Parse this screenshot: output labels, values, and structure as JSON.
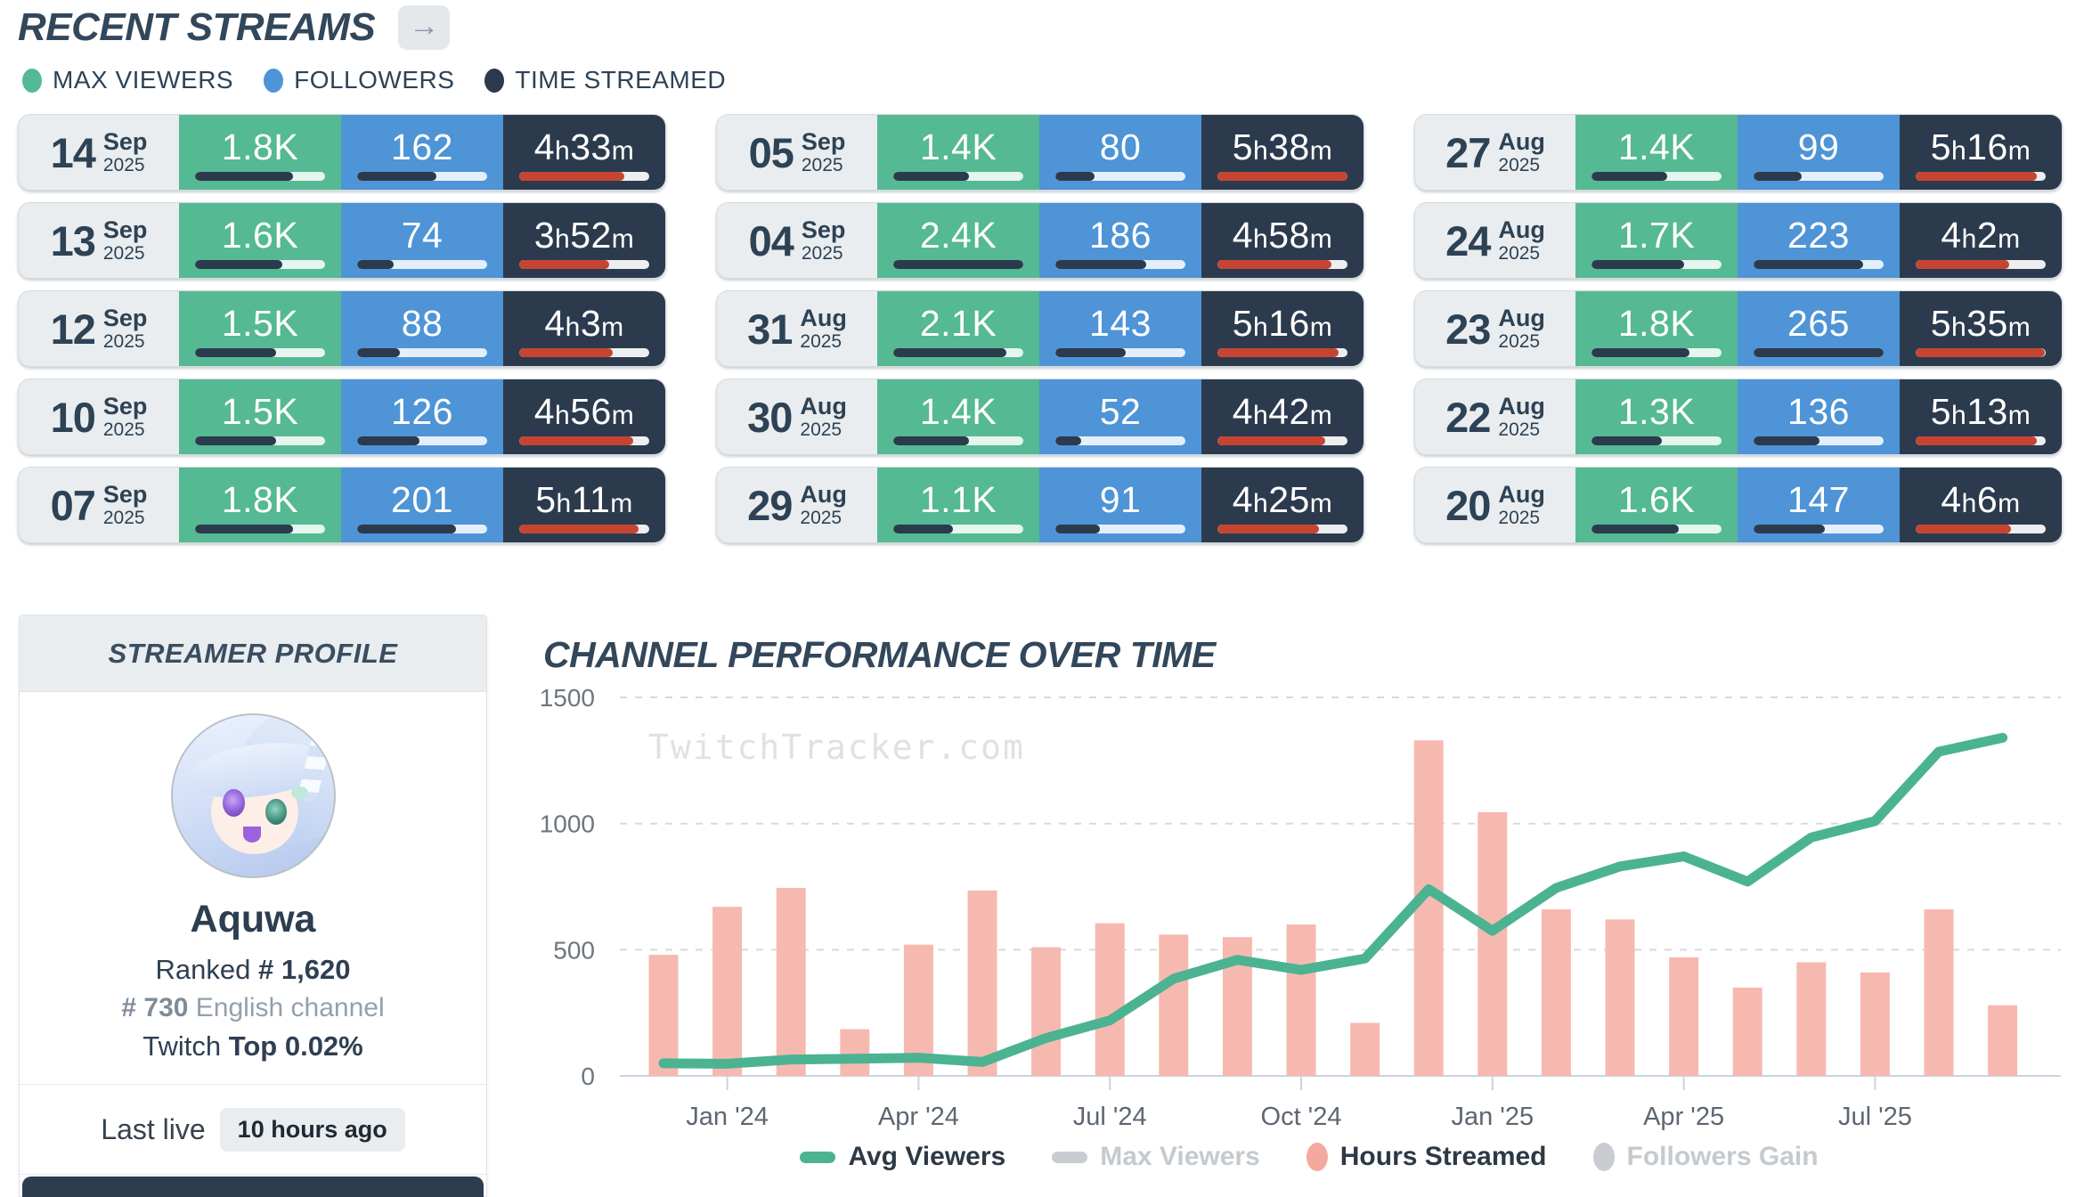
{
  "colors": {
    "accent_green": "#55b993",
    "accent_blue": "#4e94d6",
    "accent_navy": "#2c3a4d",
    "progress_red": "#c64532",
    "track_light": "rgba(255,255,255,0.85)",
    "track_on_dark": "#eceef0",
    "bar_pink": "#f6b9b0",
    "line_green": "#4bb392",
    "muted_gray": "#c9cdd1",
    "grid_gray": "#d9d9d9",
    "axis_line": "#c9d3e0"
  },
  "recent_streams": {
    "title": "RECENT STREAMS",
    "arrow_button": "→",
    "legend": [
      {
        "label": "MAX VIEWERS",
        "color": "#55b993"
      },
      {
        "label": "FOLLOWERS",
        "color": "#4e94d6"
      },
      {
        "label": "TIME STREAMED",
        "color": "#2c3a4d"
      }
    ],
    "columns": [
      [
        {
          "day": "14",
          "month": "Sep",
          "year": "2025",
          "max_viewers": "1.8K",
          "max_viewers_pct": 75,
          "followers": "162",
          "followers_pct": 61,
          "time_streamed": "4h33m",
          "time_streamed_pct": 81
        },
        {
          "day": "13",
          "month": "Sep",
          "year": "2025",
          "max_viewers": "1.6K",
          "max_viewers_pct": 67,
          "followers": "74",
          "followers_pct": 28,
          "time_streamed": "3h52m",
          "time_streamed_pct": 69
        },
        {
          "day": "12",
          "month": "Sep",
          "year": "2025",
          "max_viewers": "1.5K",
          "max_viewers_pct": 62,
          "followers": "88",
          "followers_pct": 33,
          "time_streamed": "4h3m",
          "time_streamed_pct": 72
        },
        {
          "day": "10",
          "month": "Sep",
          "year": "2025",
          "max_viewers": "1.5K",
          "max_viewers_pct": 62,
          "followers": "126",
          "followers_pct": 48,
          "time_streamed": "4h56m",
          "time_streamed_pct": 88
        },
        {
          "day": "07",
          "month": "Sep",
          "year": "2025",
          "max_viewers": "1.8K",
          "max_viewers_pct": 75,
          "followers": "201",
          "followers_pct": 76,
          "time_streamed": "5h11m",
          "time_streamed_pct": 92
        }
      ],
      [
        {
          "day": "05",
          "month": "Sep",
          "year": "2025",
          "max_viewers": "1.4K",
          "max_viewers_pct": 58,
          "followers": "80",
          "followers_pct": 30,
          "time_streamed": "5h38m",
          "time_streamed_pct": 100
        },
        {
          "day": "04",
          "month": "Sep",
          "year": "2025",
          "max_viewers": "2.4K",
          "max_viewers_pct": 100,
          "followers": "186",
          "followers_pct": 70,
          "time_streamed": "4h58m",
          "time_streamed_pct": 88
        },
        {
          "day": "31",
          "month": "Aug",
          "year": "2025",
          "max_viewers": "2.1K",
          "max_viewers_pct": 87,
          "followers": "143",
          "followers_pct": 54,
          "time_streamed": "5h16m",
          "time_streamed_pct": 93
        },
        {
          "day": "30",
          "month": "Aug",
          "year": "2025",
          "max_viewers": "1.4K",
          "max_viewers_pct": 58,
          "followers": "52",
          "followers_pct": 20,
          "time_streamed": "4h42m",
          "time_streamed_pct": 83
        },
        {
          "day": "29",
          "month": "Aug",
          "year": "2025",
          "max_viewers": "1.1K",
          "max_viewers_pct": 46,
          "followers": "91",
          "followers_pct": 34,
          "time_streamed": "4h25m",
          "time_streamed_pct": 78
        }
      ],
      [
        {
          "day": "27",
          "month": "Aug",
          "year": "2025",
          "max_viewers": "1.4K",
          "max_viewers_pct": 58,
          "followers": "99",
          "followers_pct": 37,
          "time_streamed": "5h16m",
          "time_streamed_pct": 93
        },
        {
          "day": "24",
          "month": "Aug",
          "year": "2025",
          "max_viewers": "1.7K",
          "max_viewers_pct": 71,
          "followers": "223",
          "followers_pct": 84,
          "time_streamed": "4h2m",
          "time_streamed_pct": 72
        },
        {
          "day": "23",
          "month": "Aug",
          "year": "2025",
          "max_viewers": "1.8K",
          "max_viewers_pct": 75,
          "followers": "265",
          "followers_pct": 100,
          "time_streamed": "5h35m",
          "time_streamed_pct": 99
        },
        {
          "day": "22",
          "month": "Aug",
          "year": "2025",
          "max_viewers": "1.3K",
          "max_viewers_pct": 54,
          "followers": "136",
          "followers_pct": 51,
          "time_streamed": "5h13m",
          "time_streamed_pct": 93
        },
        {
          "day": "20",
          "month": "Aug",
          "year": "2025",
          "max_viewers": "1.6K",
          "max_viewers_pct": 67,
          "followers": "147",
          "followers_pct": 55,
          "time_streamed": "4h6m",
          "time_streamed_pct": 73
        }
      ]
    ]
  },
  "profile": {
    "header": "STREAMER PROFILE",
    "name": "Aquwa",
    "ranked_label": "Ranked",
    "ranked_value": "# 1,620",
    "lang_rank": "# 730",
    "lang_text": "English channel",
    "twitch_label": "Twitch",
    "twitch_value": "Top 0.02%",
    "last_live_label": "Last live",
    "last_live_value": "10 hours ago"
  },
  "chart": {
    "title": "CHANNEL PERFORMANCE OVER TIME",
    "watermark": "TwitchTracker.com",
    "legend": [
      {
        "label": "Avg Viewers",
        "swatch": "line",
        "color": "#4bb392",
        "muted": false
      },
      {
        "label": "Max Viewers",
        "swatch": "line",
        "color": "#c9cdd1",
        "muted": true
      },
      {
        "label": "Hours Streamed",
        "swatch": "dot",
        "color": "#f3a99f",
        "muted": false
      },
      {
        "label": "Followers Gain",
        "swatch": "dot",
        "color": "#c9cdd1",
        "muted": true
      }
    ]
  },
  "chart_data": {
    "type": "combo",
    "title": "CHANNEL PERFORMANCE OVER TIME",
    "categories": [
      "Dec '23",
      "Jan '24",
      "Feb '24",
      "Mar '24",
      "Apr '24",
      "May '24",
      "Jun '24",
      "Jul '24",
      "Aug '24",
      "Sep '24",
      "Oct '24",
      "Nov '24",
      "Dec '24",
      "Jan '25",
      "Feb '25",
      "Mar '25",
      "Apr '25",
      "May '25",
      "Jun '25",
      "Jul '25",
      "Aug '25",
      "Sep '25"
    ],
    "series": [
      {
        "name": "Avg Viewers",
        "type": "line",
        "color": "#4bb392",
        "enabled": true,
        "values": [
          50,
          48,
          65,
          68,
          72,
          55,
          150,
          220,
          385,
          460,
          420,
          465,
          740,
          575,
          745,
          830,
          870,
          770,
          945,
          1010,
          1285,
          1340
        ]
      },
      {
        "name": "Max Viewers",
        "type": "line",
        "color": "#c9cdd1",
        "enabled": false,
        "values": []
      },
      {
        "name": "Hours Streamed",
        "type": "bar",
        "color": "#f6b9b0",
        "enabled": true,
        "values": [
          480,
          670,
          745,
          185,
          520,
          735,
          510,
          605,
          560,
          550,
          600,
          210,
          1330,
          1045,
          660,
          620,
          470,
          350,
          450,
          410,
          660,
          280
        ]
      },
      {
        "name": "Followers Gain",
        "type": "bar",
        "color": "#c9cdd1",
        "enabled": false,
        "values": []
      }
    ],
    "yticks": [
      0,
      500,
      1000,
      1500
    ],
    "ylim": [
      0,
      1595
    ],
    "xtick_labels": [
      "Jan '24",
      "Apr '24",
      "Jul '24",
      "Oct '24",
      "Jan '25",
      "Apr '25",
      "Jul '25"
    ],
    "xtick_indices": [
      1,
      4,
      7,
      10,
      13,
      16,
      19
    ],
    "grid": "dashed-horizontal",
    "legend_position": "bottom"
  }
}
